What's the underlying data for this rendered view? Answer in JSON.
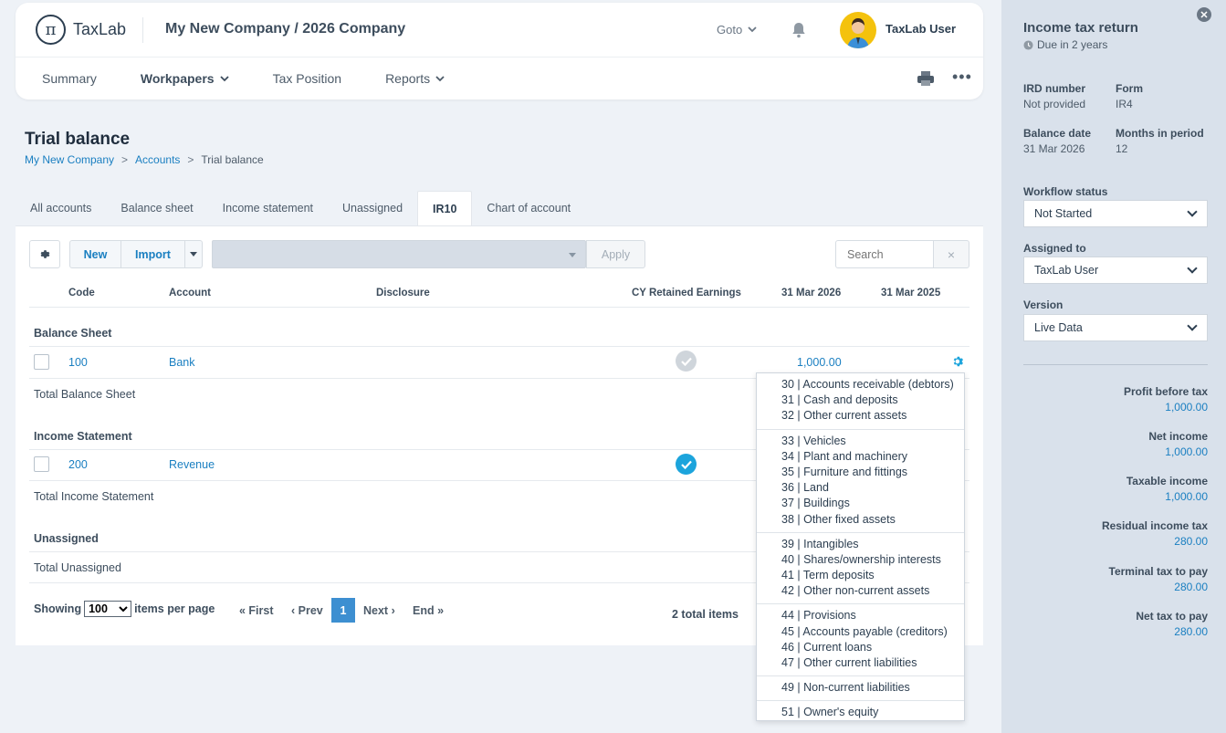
{
  "header": {
    "logo_text": "TaxLab",
    "company": "My New Company / 2026 Company",
    "goto_label": "Goto",
    "user_name": "TaxLab User"
  },
  "nav": {
    "items": [
      {
        "label": "Summary",
        "dropdown": false
      },
      {
        "label": "Workpapers",
        "dropdown": true
      },
      {
        "label": "Tax Position",
        "dropdown": false
      },
      {
        "label": "Reports",
        "dropdown": true
      }
    ]
  },
  "page": {
    "title": "Trial balance",
    "breadcrumb": [
      "My New Company",
      "Accounts",
      "Trial balance"
    ]
  },
  "tabs": [
    "All accounts",
    "Balance sheet",
    "Income statement",
    "Unassigned",
    "IR10",
    "Chart of account"
  ],
  "active_tab": "IR10",
  "toolbar": {
    "new_label": "New",
    "import_label": "Import",
    "apply_label": "Apply",
    "search_placeholder": "Search",
    "clear_icon": "×"
  },
  "table": {
    "columns": [
      "Code",
      "Account",
      "Disclosure",
      "CY Retained Earnings",
      "31 Mar 2026",
      "31 Mar 2025"
    ],
    "sections": [
      {
        "name": "Balance Sheet",
        "rows": [
          {
            "code": "100",
            "account": "Bank",
            "cy_retained": false,
            "mar2026": "1,000.00",
            "mar2025": ""
          }
        ],
        "total_label": "Total Balance Sheet"
      },
      {
        "name": "Income Statement",
        "rows": [
          {
            "code": "200",
            "account": "Revenue",
            "cy_retained": true,
            "mar2026": "",
            "mar2025": ""
          }
        ],
        "total_label": "Total Income Statement"
      },
      {
        "name": "Unassigned",
        "rows": [],
        "total_label": "Total Unassigned"
      }
    ]
  },
  "pager": {
    "showing_label": "Showing",
    "per_page": "100",
    "per_page_label": "items per page",
    "first": "« First",
    "prev": "‹ Prev",
    "current": "1",
    "next": "Next ›",
    "end": "End »",
    "total": "2 total items"
  },
  "disclosure_dropdown": [
    [
      "30 | Accounts receivable (debtors)",
      "31 | Cash and deposits",
      "32 | Other current assets"
    ],
    [
      "33 | Vehicles",
      "34 | Plant and machinery",
      "35 | Furniture and fittings",
      "36 | Land",
      "37 | Buildings",
      "38 | Other fixed assets"
    ],
    [
      "39 | Intangibles",
      "40 | Shares/ownership interests",
      "41 | Term deposits",
      "42 | Other non-current assets"
    ],
    [
      "44 | Provisions",
      "45 | Accounts payable (creditors)",
      "46 | Current loans",
      "47 | Other current liabilities"
    ],
    [
      "49 | Non-current liabilities"
    ],
    [
      "51 | Owner's equity"
    ]
  ],
  "sidebar": {
    "title": "Income tax return",
    "due": "Due in 2 years",
    "ird_label": "IRD number",
    "ird_value": "Not provided",
    "form_label": "Form",
    "form_value": "IR4",
    "balance_label": "Balance date",
    "balance_value": "31 Mar 2026",
    "months_label": "Months in period",
    "months_value": "12",
    "workflow_label": "Workflow status",
    "workflow_value": "Not Started",
    "assigned_label": "Assigned to",
    "assigned_value": "TaxLab User",
    "version_label": "Version",
    "version_value": "Live Data",
    "figures": [
      {
        "label": "Profit before tax",
        "value": "1,000.00"
      },
      {
        "label": "Net income",
        "value": "1,000.00"
      },
      {
        "label": "Taxable income",
        "value": "1,000.00"
      },
      {
        "label": "Residual income tax",
        "value": "280.00"
      },
      {
        "label": "Terminal tax to pay",
        "value": "280.00"
      },
      {
        "label": "Net tax to pay",
        "value": "280.00"
      }
    ]
  },
  "colors": {
    "accent": "#1a7fc1",
    "check_active": "#1ca4dc",
    "check_inactive": "#cfd5db",
    "page_active": "#3d8fd1"
  }
}
